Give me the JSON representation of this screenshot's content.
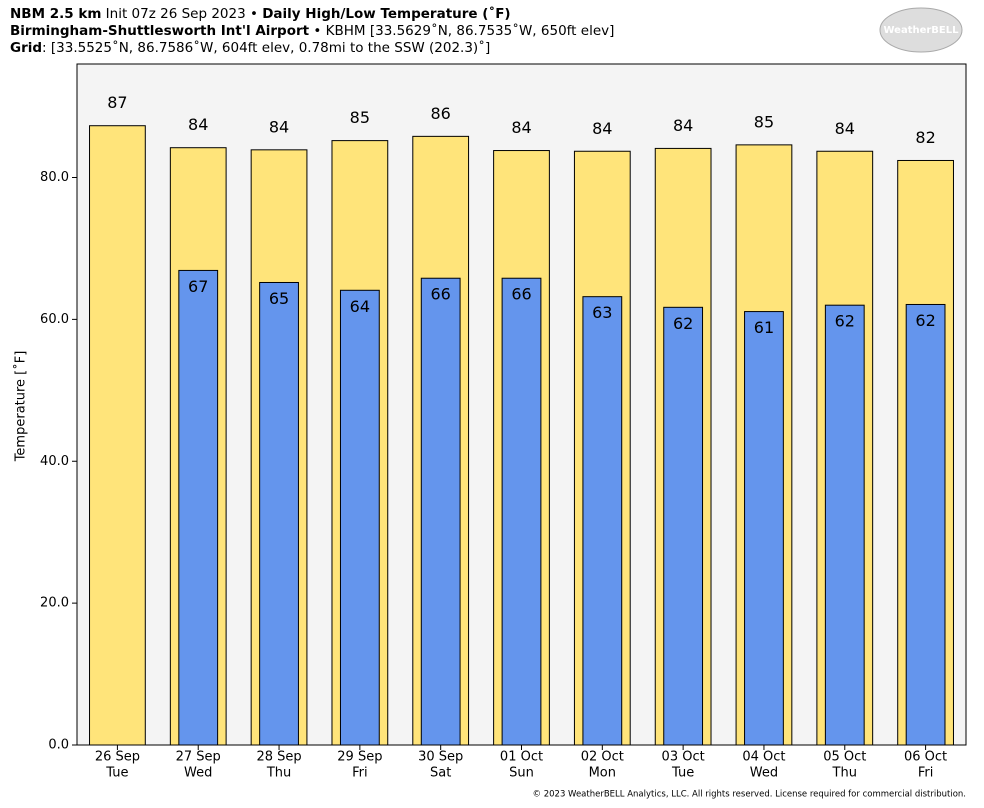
{
  "chart_data": {
    "type": "bar",
    "title_lines": [
      [
        {
          "text": "NBM 2.5 km",
          "bold": true
        },
        {
          "text": " Init 07z 26 Sep 2023 • ",
          "bold": false
        },
        {
          "text": "Daily High/Low Temperature (˚F)",
          "bold": true
        }
      ],
      [
        {
          "text": "Birmingham-Shuttlesworth Int'l Airport",
          "bold": true
        },
        {
          "text": " • KBHM [33.5629˚N, 86.7535˚W, 650ft elev]",
          "bold": false
        }
      ],
      [
        {
          "text": "Grid",
          "bold": true
        },
        {
          "text": ": [33.5525˚N, 86.7586˚W, 604ft elev, 0.78mi to the SSW (202.3)˚]",
          "bold": false
        }
      ]
    ],
    "logo": "WeatherBELL",
    "ylabel": "Temperature [˚F]",
    "footer": "© 2023 WeatherBELL Analytics, LLC. All rights reserved. License required for commercial distribution.",
    "categories": [
      "26 Sep",
      "27 Sep",
      "28 Sep",
      "29 Sep",
      "30 Sep",
      "01 Oct",
      "02 Oct",
      "03 Oct",
      "04 Oct",
      "05 Oct",
      "06 Oct"
    ],
    "category_days": [
      "Tue",
      "Wed",
      "Thu",
      "Fri",
      "Sat",
      "Sun",
      "Mon",
      "Tue",
      "Wed",
      "Thu",
      "Fri"
    ],
    "series": [
      {
        "color": "#FFE47A",
        "values": [
          87.3,
          84.2,
          83.9,
          85.2,
          85.8,
          83.8,
          83.7,
          84.1,
          84.6,
          83.7,
          82.4
        ],
        "value_labels": [
          "87",
          "84",
          "84",
          "85",
          "86",
          "84",
          "84",
          "84",
          "85",
          "84",
          "82"
        ]
      },
      {
        "color": "#6495ED",
        "values": [
          null,
          66.9,
          65.2,
          64.1,
          65.8,
          65.8,
          63.2,
          61.7,
          61.1,
          62.0,
          62.1
        ],
        "value_labels": [
          null,
          "67",
          "65",
          "64",
          "66",
          "66",
          "63",
          "62",
          "61",
          "62",
          "62"
        ]
      }
    ],
    "ylim": [
      0,
      96
    ],
    "yticks": [
      {
        "value": 0,
        "label": "0.0"
      },
      {
        "value": 20,
        "label": "20.0"
      },
      {
        "value": 40,
        "label": "40.0"
      },
      {
        "value": 60,
        "label": "60.0"
      },
      {
        "value": 80,
        "label": "80.0"
      }
    ],
    "plot_background": "#F4F4F4"
  }
}
